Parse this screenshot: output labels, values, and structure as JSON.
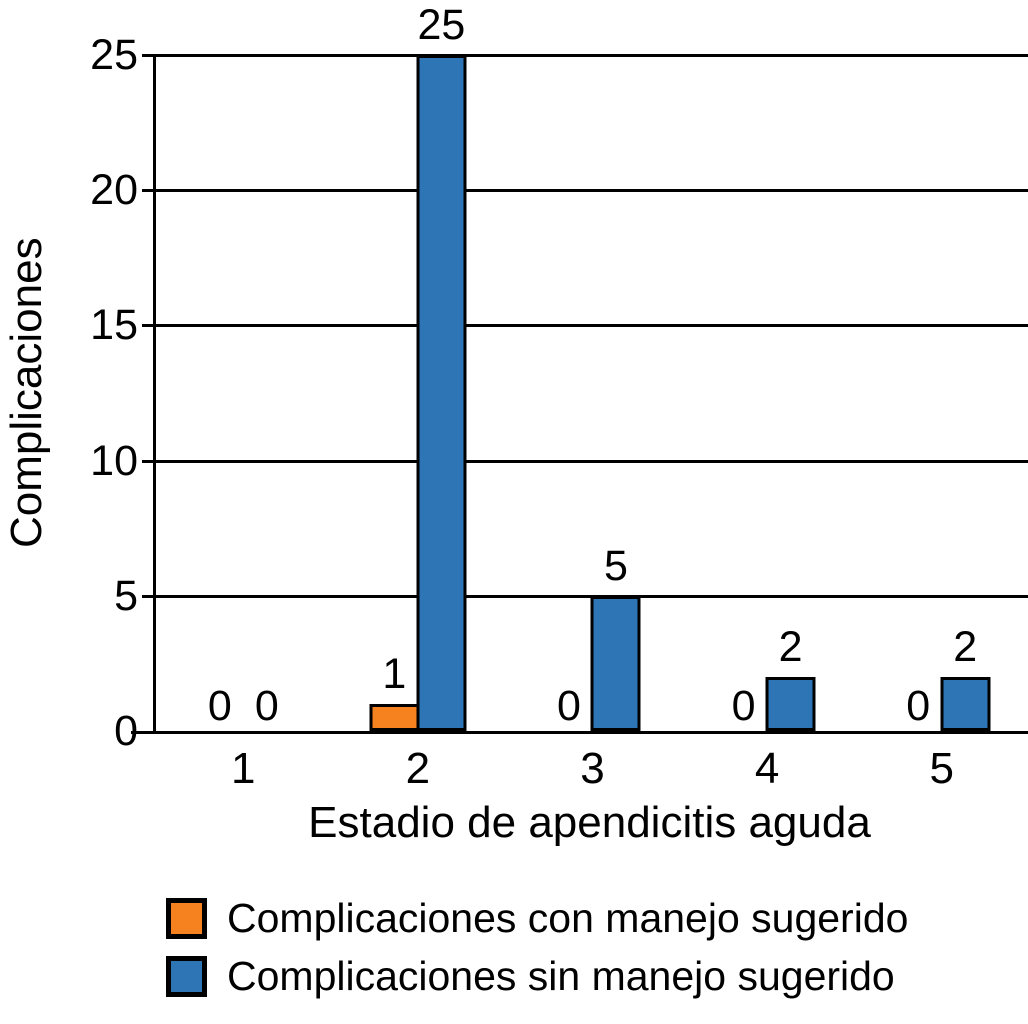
{
  "chart_data": {
    "type": "bar",
    "categories": [
      "1",
      "2",
      "3",
      "4",
      "5"
    ],
    "series": [
      {
        "name": "Complicaciones con manejo sugerido",
        "color": "#F5821E",
        "values": [
          0,
          1,
          0,
          0,
          0
        ]
      },
      {
        "name": "Complicaciones sin manejo sugerido",
        "color": "#2E75B5",
        "values": [
          0,
          25,
          5,
          2,
          2
        ]
      }
    ],
    "xlabel": "Estadio de apendicitis aguda",
    "ylabel": "Complicaciones",
    "ylim": [
      0,
      25
    ],
    "yticks": [
      0,
      5,
      10,
      15,
      20,
      25
    ],
    "grid": "horizontal",
    "legend_position": "bottom-left",
    "bar_value_labels": true,
    "axis_color": "#000000",
    "background_color": "#ffffff"
  }
}
